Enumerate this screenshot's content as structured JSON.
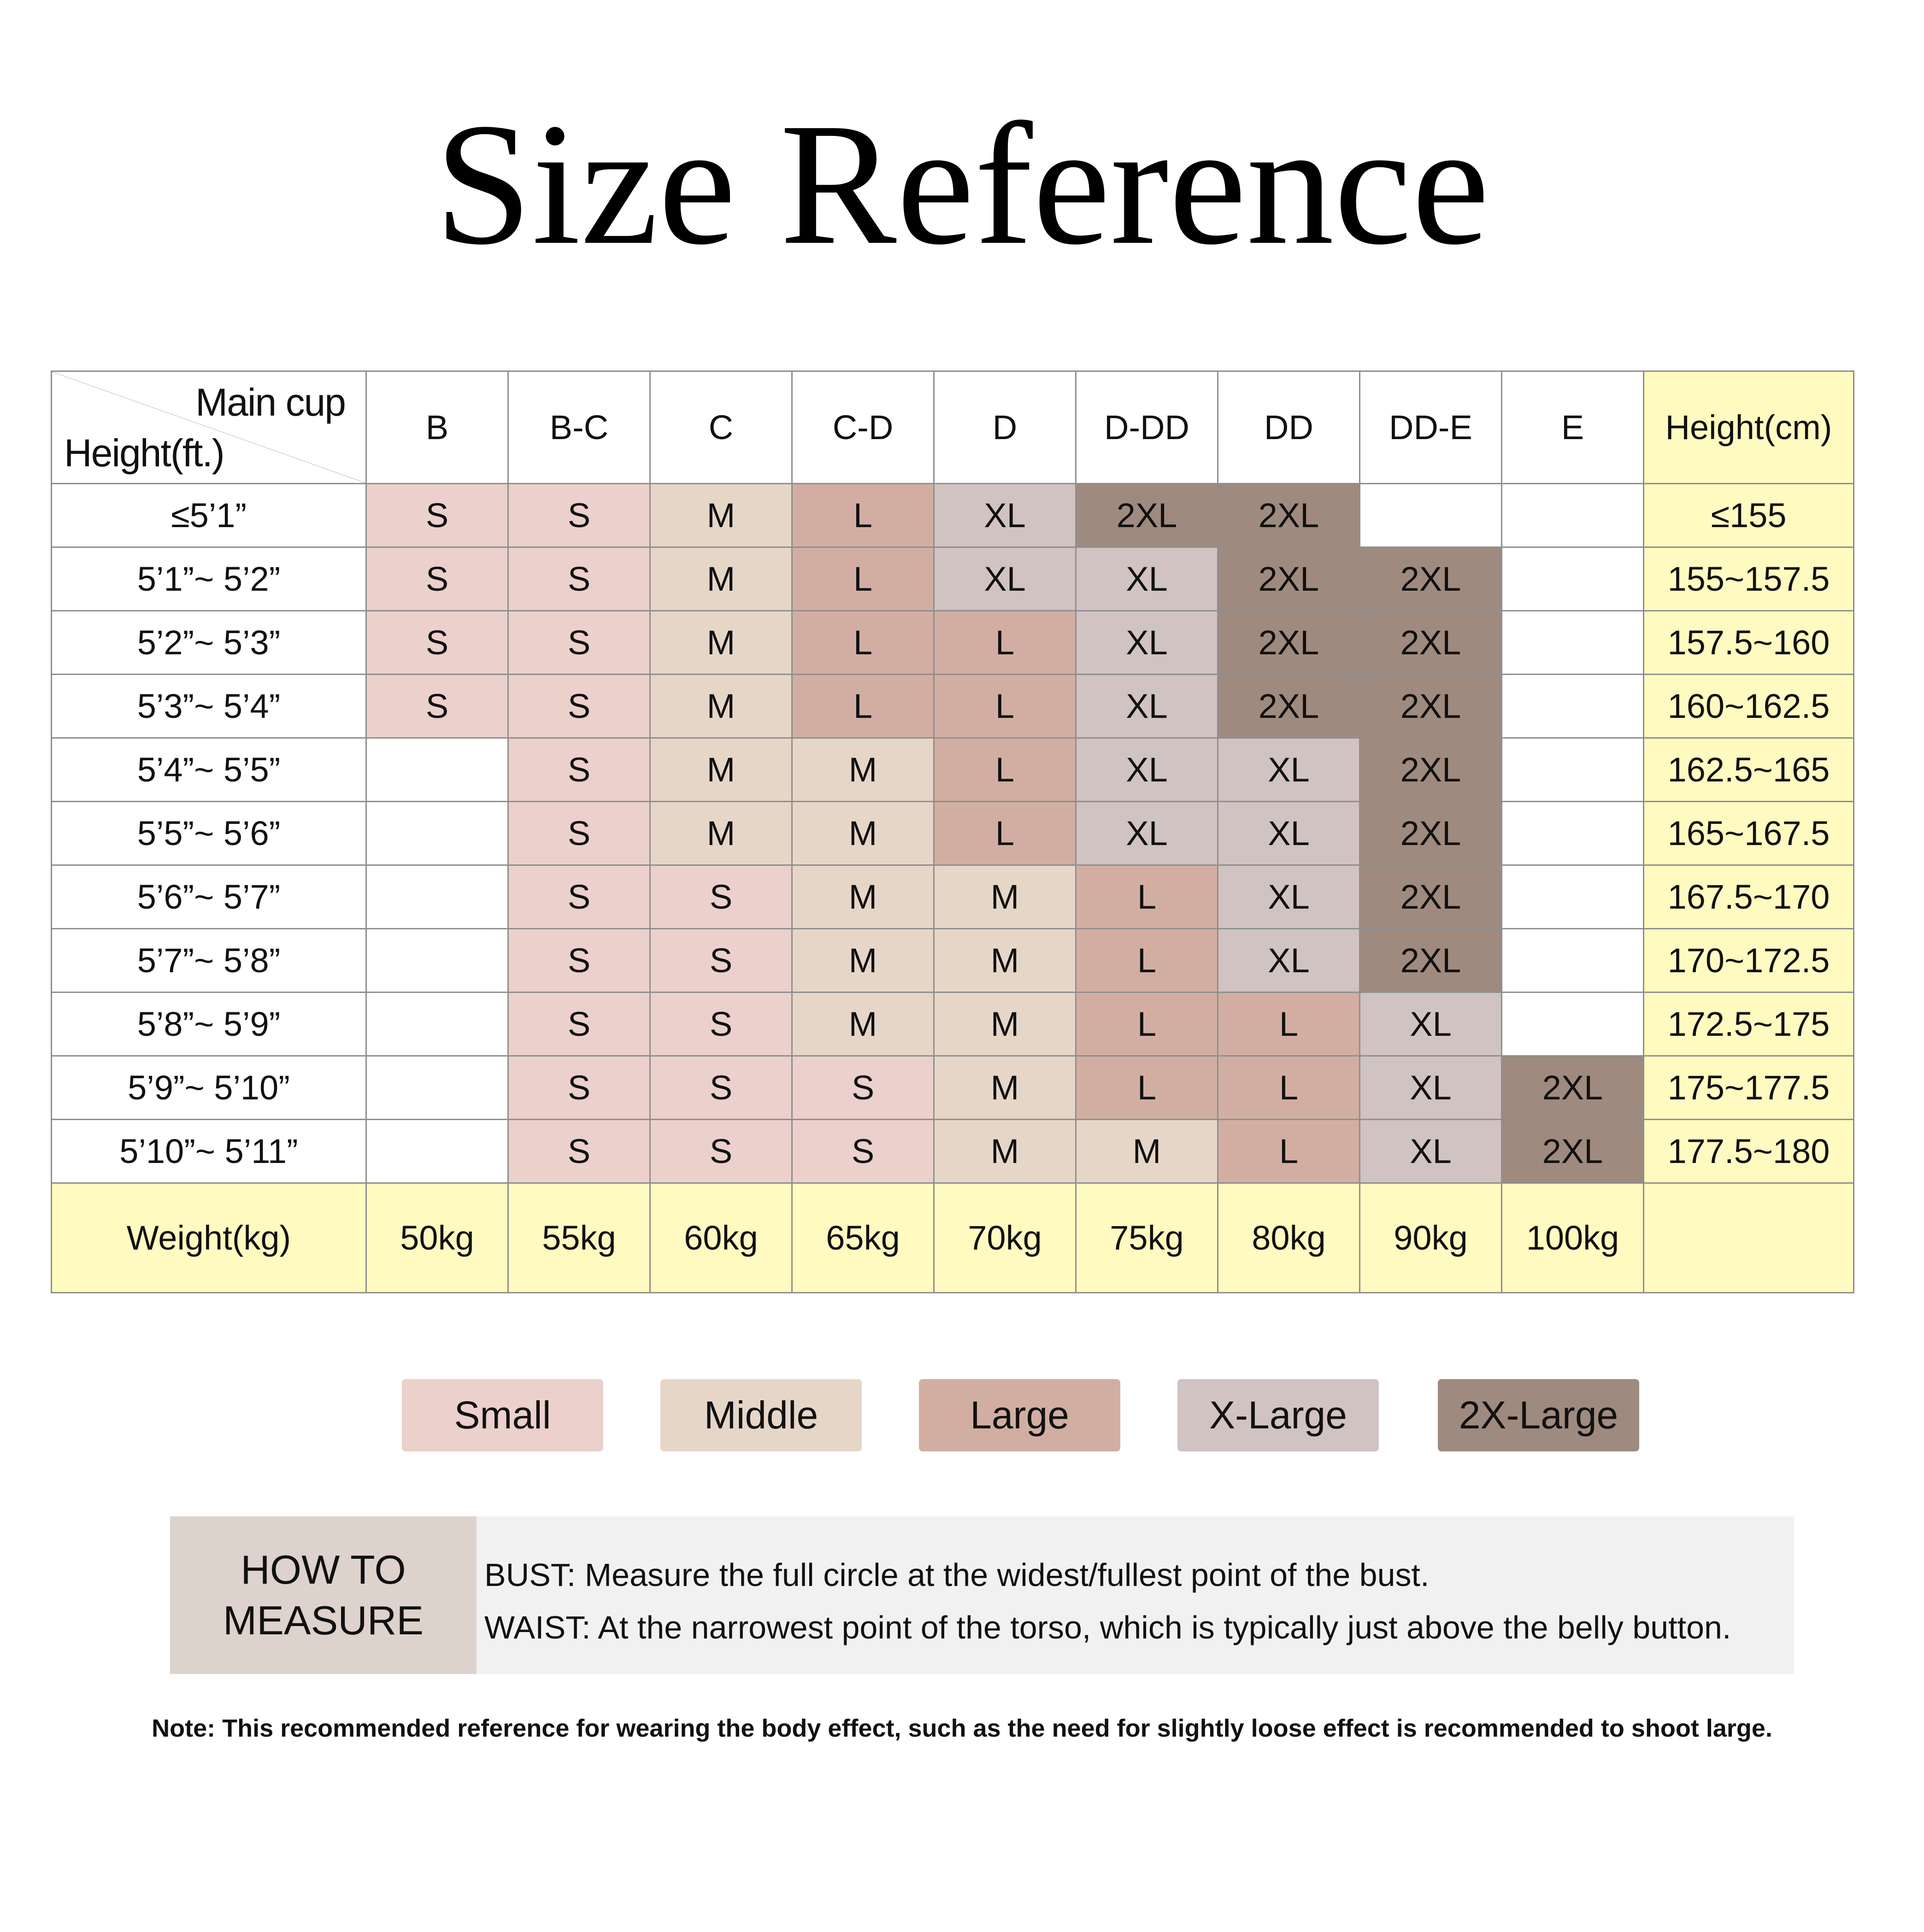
{
  "title": "Size Reference",
  "colors": {
    "small": "#ebd0cc",
    "middle": "#e6d6c8",
    "large": "#d2aea2",
    "xlarge": "#d0c3c2",
    "xxlarge": "#9f8a7f",
    "empty": "#ffffff",
    "highlight": "#fffac0"
  },
  "table": {
    "corner_top": "Main cup",
    "corner_bottom": "Height(ft.)",
    "cups": [
      "B",
      "B-C",
      "C",
      "C-D",
      "D",
      "D-DD",
      "DD",
      "DD-E",
      "E"
    ],
    "height_cm_header": "Height(cm)",
    "rows": [
      {
        "ft": "≤5’1”",
        "cm": "≤155",
        "cells": [
          "S",
          "S",
          "M",
          "L",
          "XL",
          "2XL",
          "2XL",
          "",
          ""
        ]
      },
      {
        "ft": "5’1”~ 5’2”",
        "cm": "155~157.5",
        "cells": [
          "S",
          "S",
          "M",
          "L",
          "XL",
          "XL",
          "2XL",
          "2XL",
          ""
        ]
      },
      {
        "ft": "5’2”~ 5’3”",
        "cm": "157.5~160",
        "cells": [
          "S",
          "S",
          "M",
          "L",
          "L",
          "XL",
          "2XL",
          "2XL",
          ""
        ]
      },
      {
        "ft": "5’3”~ 5’4”",
        "cm": "160~162.5",
        "cells": [
          "S",
          "S",
          "M",
          "L",
          "L",
          "XL",
          "2XL",
          "2XL",
          ""
        ]
      },
      {
        "ft": "5’4”~ 5’5”",
        "cm": "162.5~165",
        "cells": [
          "",
          "S",
          "M",
          "M",
          "L",
          "XL",
          "XL",
          "2XL",
          ""
        ]
      },
      {
        "ft": "5’5”~ 5’6”",
        "cm": "165~167.5",
        "cells": [
          "",
          "S",
          "M",
          "M",
          "L",
          "XL",
          "XL",
          "2XL",
          ""
        ]
      },
      {
        "ft": "5’6”~ 5’7”",
        "cm": "167.5~170",
        "cells": [
          "",
          "S",
          "S",
          "M",
          "M",
          "L",
          "XL",
          "2XL",
          ""
        ]
      },
      {
        "ft": "5’7”~ 5’8”",
        "cm": "170~172.5",
        "cells": [
          "",
          "S",
          "S",
          "M",
          "M",
          "L",
          "XL",
          "2XL",
          ""
        ]
      },
      {
        "ft": "5’8”~ 5’9”",
        "cm": "172.5~175",
        "cells": [
          "",
          "S",
          "S",
          "M",
          "M",
          "L",
          "L",
          "XL",
          ""
        ]
      },
      {
        "ft": "5’9”~ 5’10”",
        "cm": "175~177.5",
        "cells": [
          "",
          "S",
          "S",
          "S",
          "M",
          "L",
          "L",
          "XL",
          "2XL"
        ]
      },
      {
        "ft": "5’10”~ 5’11”",
        "cm": "177.5~180",
        "cells": [
          "",
          "S",
          "S",
          "S",
          "M",
          "M",
          "L",
          "XL",
          "2XL"
        ]
      }
    ],
    "weight_label": "Weight(kg)",
    "weights": [
      "50kg",
      "55kg",
      "60kg",
      "65kg",
      "70kg",
      "75kg",
      "80kg",
      "90kg",
      "100kg"
    ]
  },
  "legend": [
    {
      "label": "Small",
      "color": "#ebd0cc"
    },
    {
      "label": "Middle",
      "color": "#e6d6c8"
    },
    {
      "label": "Large",
      "color": "#d2aea2"
    },
    {
      "label": "X-Large",
      "color": "#d0c3c2"
    },
    {
      "label": "2X-Large",
      "color": "#9f8a7f"
    }
  ],
  "how_to_measure": {
    "label_line1": "HOW TO",
    "label_line2": "MEASURE",
    "bust": "BUST: Measure the full circle at the widest/fullest point of the bust.",
    "waist": "WAIST: At the narrowest point of the torso, which is typically just above the belly button."
  },
  "note": "Note: This recommended reference for wearing the body effect, such as the need for slightly loose effect is recommended to shoot large."
}
